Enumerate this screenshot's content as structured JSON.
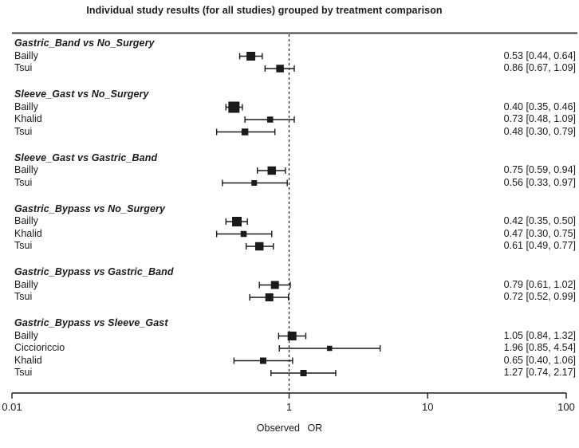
{
  "accent_colors": {
    "ink": "#1a1a1a",
    "rule": "#3d3d3d",
    "background": "#ffffff"
  },
  "chart_data": {
    "type": "forest",
    "title": "Individual study results (for all studies) grouped by treatment comparison",
    "xlabel": "Observed OR",
    "x_scale": "log10",
    "xlim": [
      0.01,
      100
    ],
    "x_ticks": [
      0.01,
      1,
      10,
      100
    ],
    "x_tick_labels": [
      "0.01",
      "1",
      "10",
      "100"
    ],
    "reference_line": 1,
    "grid": false,
    "legend": "none",
    "groups": [
      {
        "comparison": "Gastric_Band vs No_Surgery",
        "studies": [
          {
            "name": "Bailly",
            "or": 0.53,
            "ci_low": 0.44,
            "ci_high": 0.64,
            "text": "0.53 [0.44, 0.64]",
            "marker_size": 11
          },
          {
            "name": "Tsui",
            "or": 0.86,
            "ci_low": 0.67,
            "ci_high": 1.09,
            "text": "0.86 [0.67, 1.09]",
            "marker_size": 9.5
          }
        ]
      },
      {
        "comparison": "Sleeve_Gast vs No_Surgery",
        "studies": [
          {
            "name": "Bailly",
            "or": 0.4,
            "ci_low": 0.35,
            "ci_high": 0.46,
            "text": "0.40 [0.35, 0.46]",
            "marker_size": 14
          },
          {
            "name": "Khalid",
            "or": 0.73,
            "ci_low": 0.48,
            "ci_high": 1.09,
            "text": "0.73 [0.48, 1.09]",
            "marker_size": 7.5
          },
          {
            "name": "Tsui",
            "or": 0.48,
            "ci_low": 0.3,
            "ci_high": 0.79,
            "text": "0.48 [0.30, 0.79]",
            "marker_size": 8.5
          }
        ]
      },
      {
        "comparison": "Sleeve_Gast vs Gastric_Band",
        "studies": [
          {
            "name": "Bailly",
            "or": 0.75,
            "ci_low": 0.59,
            "ci_high": 0.94,
            "text": "0.75 [0.59, 0.94]",
            "marker_size": 10.5
          },
          {
            "name": "Tsui",
            "or": 0.56,
            "ci_low": 0.33,
            "ci_high": 0.97,
            "text": "0.56 [0.33, 0.97]",
            "marker_size": 7
          }
        ]
      },
      {
        "comparison": "Gastric_Bypass vs No_Surgery",
        "studies": [
          {
            "name": "Bailly",
            "or": 0.42,
            "ci_low": 0.35,
            "ci_high": 0.5,
            "text": "0.42 [0.35, 0.50]",
            "marker_size": 12
          },
          {
            "name": "Khalid",
            "or": 0.47,
            "ci_low": 0.3,
            "ci_high": 0.75,
            "text": "0.47 [0.30, 0.75]",
            "marker_size": 7.5
          },
          {
            "name": "Tsui",
            "or": 0.61,
            "ci_low": 0.49,
            "ci_high": 0.77,
            "text": "0.61 [0.49, 0.77]",
            "marker_size": 10.5
          }
        ]
      },
      {
        "comparison": "Gastric_Bypass vs Gastric_Band",
        "studies": [
          {
            "name": "Bailly",
            "or": 0.79,
            "ci_low": 0.61,
            "ci_high": 1.02,
            "text": "0.79 [0.61, 1.02]",
            "marker_size": 10
          },
          {
            "name": "Tsui",
            "or": 0.72,
            "ci_low": 0.52,
            "ci_high": 0.99,
            "text": "0.72 [0.52, 0.99]",
            "marker_size": 10
          }
        ]
      },
      {
        "comparison": "Gastric_Bypass vs Sleeve_Gast",
        "studies": [
          {
            "name": "Bailly",
            "or": 1.05,
            "ci_low": 0.84,
            "ci_high": 1.32,
            "text": "1.05 [0.84, 1.32]",
            "marker_size": 11
          },
          {
            "name": "Ciccioriccio",
            "or": 1.96,
            "ci_low": 0.85,
            "ci_high": 4.54,
            "text": "1.96 [0.85, 4.54]",
            "marker_size": 6.5
          },
          {
            "name": "Khalid",
            "or": 0.65,
            "ci_low": 0.4,
            "ci_high": 1.06,
            "text": "0.65 [0.40, 1.06]",
            "marker_size": 8
          },
          {
            "name": "Tsui",
            "or": 1.27,
            "ci_low": 0.74,
            "ci_high": 2.17,
            "text": "1.27 [0.74, 2.17]",
            "marker_size": 8
          }
        ]
      }
    ]
  }
}
